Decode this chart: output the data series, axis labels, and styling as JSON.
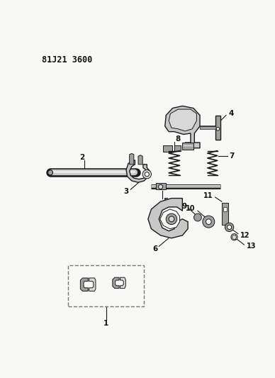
{
  "title": "81J21 3600",
  "bg_color": "#f8f8f5",
  "line_color": "#1a1a1a",
  "label_color": "#111111",
  "fig_width": 3.88,
  "fig_height": 5.33,
  "dpi": 100
}
